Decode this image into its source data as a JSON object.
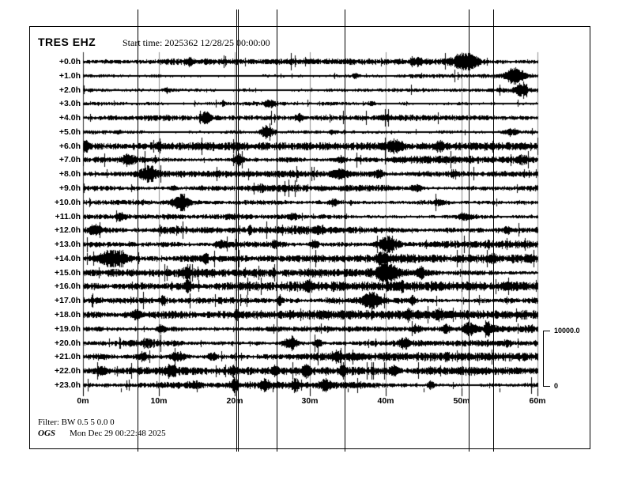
{
  "header": {
    "station": "TRES EHZ",
    "start_time": "Start time: 2025362 12/28/25 00:00:00"
  },
  "footer": {
    "filter": "Filter: BW 0.5 5 0.0 0",
    "agency": "OGS",
    "generated": "Mon Dec 29 00:22:48 2025"
  },
  "scale_bar": {
    "max": "10000.0",
    "min": "0"
  },
  "colors": {
    "trace": "#000000",
    "grid": "#909090",
    "frame": "#000000",
    "background": "#ffffff"
  },
  "chart_data": {
    "type": "line",
    "kind": "helicorder-seismogram",
    "title": "TRES EHZ",
    "x_axis": {
      "tick_labels": [
        "0m",
        "10m",
        "20m",
        "30m",
        "40m",
        "50m",
        "60m"
      ],
      "minutes_per_line": 60,
      "major_tick_minutes": 10,
      "minor_tick_minutes": 5
    },
    "amplitude_scale": {
      "max": 10000.0,
      "min": 0
    },
    "grid_minutes": [
      10,
      20,
      30,
      40,
      50,
      60
    ],
    "event_lines_minutes": [
      7.2,
      20.2,
      20.5,
      25.6,
      34.5,
      50.9,
      54.2
    ],
    "rows": [
      {
        "label": "+0.0h",
        "base": 1.9,
        "events": [
          [
            50.5,
            1.0,
            2.2
          ],
          [
            44,
            0.25,
            1.0
          ],
          [
            14,
            0.2,
            1.0
          ]
        ]
      },
      {
        "label": "+1.0h",
        "base": 1.6,
        "events": [
          [
            57,
            0.85,
            1.8
          ],
          [
            36,
            0.2,
            1.0
          ]
        ]
      },
      {
        "label": "+2.0h",
        "base": 1.5,
        "events": [
          [
            57.8,
            0.6,
            1.2
          ],
          [
            11,
            0.25,
            0.8
          ]
        ]
      },
      {
        "label": "+3.0h",
        "base": 1.6,
        "events": [
          [
            24.6,
            0.35,
            1.2
          ],
          [
            18.5,
            0.3,
            0.5
          ],
          [
            38,
            0.2,
            1.0
          ]
        ]
      },
      {
        "label": "+4.0h",
        "base": 1.6,
        "events": [
          [
            16.2,
            0.55,
            1.0
          ],
          [
            28.5,
            0.3,
            0.8
          ],
          [
            40,
            0.2,
            1.0
          ]
        ]
      },
      {
        "label": "+5.0h",
        "base": 1.7,
        "events": [
          [
            24.3,
            0.7,
            1.4
          ],
          [
            33,
            0.25,
            0.8
          ],
          [
            56.5,
            0.3,
            1.5
          ]
        ]
      },
      {
        "label": "+6.0h",
        "base": 2.3,
        "events": [
          [
            0.4,
            0.6,
            0.8
          ],
          [
            10,
            0.3,
            0.6
          ],
          [
            41,
            0.5,
            1.8
          ],
          [
            47,
            0.35,
            1.2
          ]
        ]
      },
      {
        "label": "+7.0h",
        "base": 2.4,
        "events": [
          [
            6,
            0.5,
            1.4
          ],
          [
            20.5,
            0.5,
            1.0
          ],
          [
            34,
            0.3,
            0.8
          ],
          [
            58,
            0.35,
            0.8
          ]
        ]
      },
      {
        "label": "+8.0h",
        "base": 2.5,
        "events": [
          [
            8.5,
            0.8,
            1.4
          ],
          [
            34,
            0.45,
            1.8
          ],
          [
            39,
            0.35,
            1.0
          ],
          [
            49,
            0.3,
            0.8
          ]
        ]
      },
      {
        "label": "+9.0h",
        "base": 2.4,
        "events": [
          [
            12,
            0.2,
            0.8
          ],
          [
            23.6,
            0.3,
            1.0
          ],
          [
            44,
            0.25,
            1.2
          ]
        ]
      },
      {
        "label": "+10.0h",
        "base": 2.5,
        "events": [
          [
            12.9,
            0.9,
            1.6
          ],
          [
            33,
            0.3,
            1.0
          ],
          [
            47,
            0.25,
            1.0
          ]
        ]
      },
      {
        "label": "+11.0h",
        "base": 2.4,
        "events": [
          [
            5,
            0.3,
            0.8
          ],
          [
            27.7,
            0.35,
            0.8
          ],
          [
            50,
            0.25,
            0.8
          ]
        ]
      },
      {
        "label": "+12.0h",
        "base": 2.6,
        "events": [
          [
            1.6,
            0.5,
            1.1
          ],
          [
            22,
            0.55,
            0.35
          ],
          [
            31,
            0.3,
            0.7
          ],
          [
            56,
            0.3,
            1.0
          ]
        ]
      },
      {
        "label": "+13.0h",
        "base": 2.7,
        "events": [
          [
            18,
            0.4,
            0.9
          ],
          [
            25.2,
            0.35,
            0.5
          ],
          [
            30.5,
            0.4,
            0.8
          ],
          [
            40.3,
            0.9,
            2.2
          ]
        ]
      },
      {
        "label": "+14.0h",
        "base": 2.7,
        "events": [
          [
            3.9,
            1.0,
            2.6
          ],
          [
            16.2,
            0.5,
            0.5
          ],
          [
            39.6,
            0.4,
            1.0
          ],
          [
            54,
            0.3,
            1.0
          ]
        ]
      },
      {
        "label": "+15.0h",
        "base": 2.8,
        "events": [
          [
            13.7,
            0.45,
            0.8
          ],
          [
            40,
            0.85,
            1.8
          ],
          [
            44.5,
            0.5,
            1.0
          ],
          [
            25,
            0.3,
            0.6
          ]
        ]
      },
      {
        "label": "+16.0h",
        "base": 2.8,
        "events": [
          [
            13.8,
            0.5,
            1.0
          ],
          [
            30,
            0.25,
            0.8
          ],
          [
            42,
            0.4,
            0.6
          ],
          [
            56,
            0.3,
            1.0
          ]
        ]
      },
      {
        "label": "+17.0h",
        "base": 2.8,
        "events": [
          [
            10.5,
            0.45,
            0.5
          ],
          [
            26,
            0.4,
            0.6
          ],
          [
            38,
            0.9,
            1.6
          ],
          [
            43.5,
            0.5,
            0.4
          ]
        ]
      },
      {
        "label": "+18.0h",
        "base": 2.7,
        "events": [
          [
            7,
            0.4,
            1.0
          ],
          [
            20.3,
            0.45,
            0.5
          ],
          [
            43,
            0.45,
            0.6
          ],
          [
            47,
            0.4,
            0.8
          ]
        ]
      },
      {
        "label": "+19.0h",
        "base": 2.7,
        "events": [
          [
            10.3,
            0.4,
            0.9
          ],
          [
            44,
            0.4,
            1.0
          ],
          [
            48,
            0.5,
            0.8
          ],
          [
            51,
            0.6,
            1.2
          ],
          [
            53.5,
            0.5,
            0.8
          ]
        ]
      },
      {
        "label": "+20.0h",
        "base": 2.5,
        "events": [
          [
            8.5,
            0.4,
            0.8
          ],
          [
            27.5,
            0.7,
            1.4
          ],
          [
            31,
            0.4,
            0.8
          ],
          [
            42.5,
            0.4,
            1.0
          ],
          [
            56,
            0.3,
            1.0
          ]
        ]
      },
      {
        "label": "+21.0h",
        "base": 2.4,
        "events": [
          [
            7.8,
            0.4,
            0.8
          ],
          [
            12.5,
            0.4,
            1.5
          ],
          [
            17,
            0.45,
            0.8
          ],
          [
            33.5,
            0.5,
            1.2
          ],
          [
            48,
            0.5,
            0.4
          ]
        ]
      },
      {
        "label": "+22.0h",
        "base": 2.4,
        "events": [
          [
            2.5,
            0.45,
            1.2
          ],
          [
            11.6,
            0.5,
            1.0
          ],
          [
            19.8,
            0.5,
            0.6
          ],
          [
            25.3,
            0.4,
            0.6
          ],
          [
            29.5,
            0.45,
            0.8
          ],
          [
            34.3,
            0.4,
            0.6
          ],
          [
            41,
            0.4,
            0.8
          ]
        ]
      },
      {
        "label": "+23.0h",
        "base": 2.2,
        "events": [
          [
            14.9,
            0.3,
            0.6
          ],
          [
            20,
            0.6,
            0.8
          ],
          [
            24,
            0.5,
            0.8
          ],
          [
            28,
            0.6,
            0.6
          ],
          [
            32,
            0.55,
            1.0
          ],
          [
            45.9,
            0.35,
            0.8
          ]
        ]
      }
    ]
  }
}
